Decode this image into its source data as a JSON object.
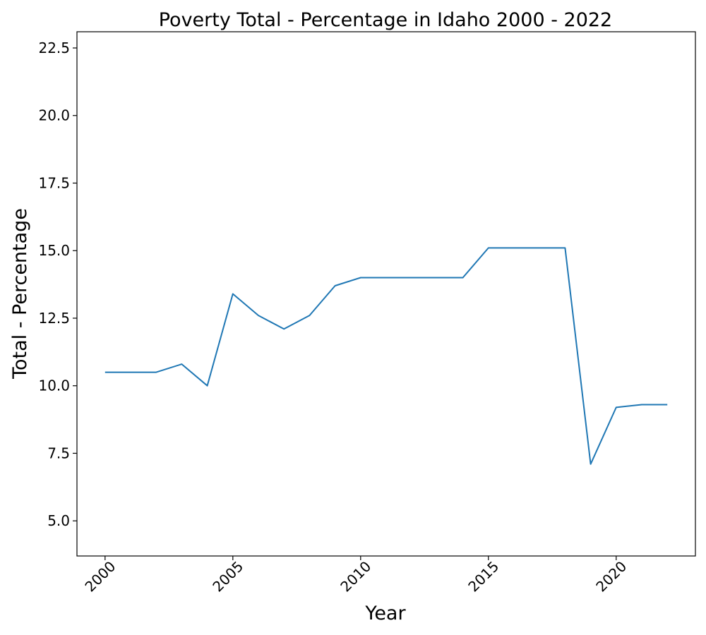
{
  "chart_data": {
    "type": "line",
    "title": "Poverty Total - Percentage in Idaho 2000 - 2022",
    "xlabel": "Year",
    "ylabel": "Total - Percentage",
    "x": [
      2000,
      2001,
      2002,
      2003,
      2004,
      2005,
      2006,
      2007,
      2008,
      2009,
      2010,
      2011,
      2012,
      2013,
      2014,
      2015,
      2016,
      2017,
      2018,
      2019,
      2020,
      2021,
      2022
    ],
    "series": [
      {
        "values": [
          10.5,
          10.5,
          10.5,
          10.8,
          10.0,
          13.4,
          12.6,
          12.1,
          12.6,
          13.7,
          14.0,
          14.0,
          14.0,
          14.0,
          14.0,
          15.1,
          15.1,
          15.1,
          15.1,
          7.1,
          9.2,
          9.3,
          9.3
        ],
        "color": "#1f77b4"
      }
    ],
    "xlim": [
      1998.9,
      2023.1
    ],
    "ylim": [
      3.7,
      23.1
    ],
    "xticks": [
      "2000",
      "2005",
      "2010",
      "2015",
      "2020"
    ],
    "yticks": [
      "5.0",
      "7.5",
      "10.0",
      "12.5",
      "15.0",
      "17.5",
      "20.0",
      "22.5"
    ],
    "grid": false,
    "legend": "none"
  }
}
